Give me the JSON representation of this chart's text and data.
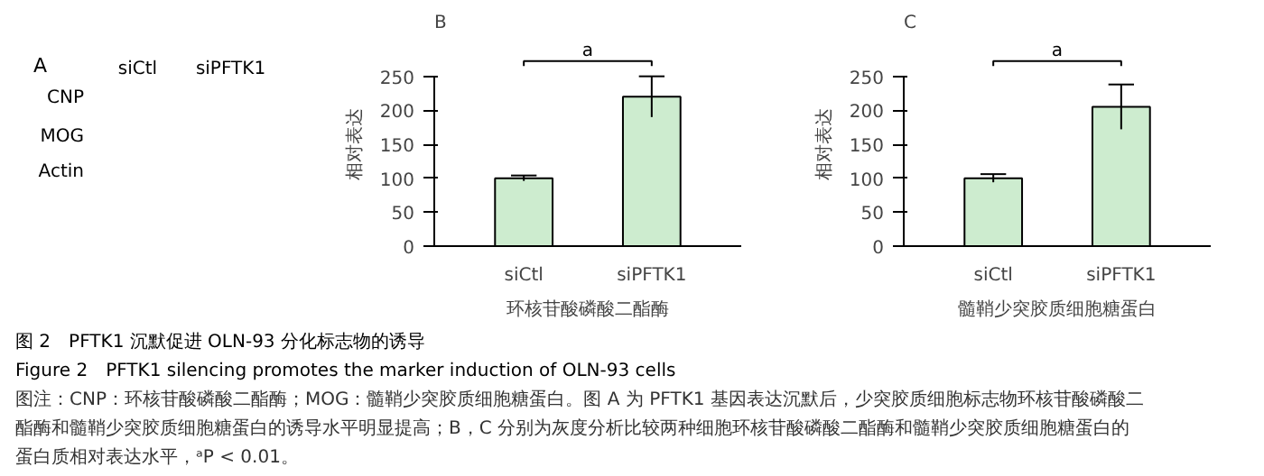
{
  "chart_data": [
    {
      "type": "other",
      "title": "A",
      "categories": [
        "siCtl",
        "siPFTK1"
      ],
      "y_categories": [
        "CNP",
        "MOG",
        "Actin"
      ]
    },
    {
      "type": "bar",
      "title": "B",
      "categories": [
        "siCtl",
        "siPFTK1"
      ],
      "values": [
        100,
        220
      ],
      "errors": [
        4,
        30
      ],
      "color": "#cdeccf",
      "ylim": [
        0,
        250
      ],
      "yticks": [
        0,
        50,
        100,
        150,
        200,
        250
      ],
      "ylabel": "相对表达",
      "xlabel": "环核苷酸磷酸二酯酶",
      "annotations": [
        "a"
      ],
      "grid": false
    },
    {
      "type": "bar",
      "title": "C",
      "categories": [
        "siCtl",
        "siPFTK1"
      ],
      "values": [
        100,
        205
      ],
      "errors": [
        6,
        33
      ],
      "color": "#cdeccf",
      "ylim": [
        0,
        250
      ],
      "yticks": [
        0,
        50,
        100,
        150,
        200,
        250
      ],
      "ylabel": "相对表达",
      "xlabel": "髓鞘少突胶质细胞糖蛋白",
      "annotations": [
        "a"
      ],
      "grid": false
    },
    {
      "type": "other",
      "annotations": [
        "图 2　PFTK1 沉默促进 OLN-93 分化标志物的诱导",
        "Figure 2　PFTK1 silencing promotes the marker induction of OLN-93 cells",
        "图注：CNP：环核苷酸磷酸二酯酶；MOG：髓鞘少突胶质细胞糖蛋白。图 A 为 PFTK1 基因表达沉默后，少突胶质细胞标志物环核苷酸磷酸二",
        "酯酶和髓鞘少突胶质细胞糖蛋白的诱导水平明显提高；B，C 分别为灰度分析比较两种细胞环核苷酸磷酸二酯酶和髓鞘少突胶质细胞糖蛋白的",
        "蛋白质相对表达水平，ᵃP < 0.01。"
      ]
    }
  ]
}
